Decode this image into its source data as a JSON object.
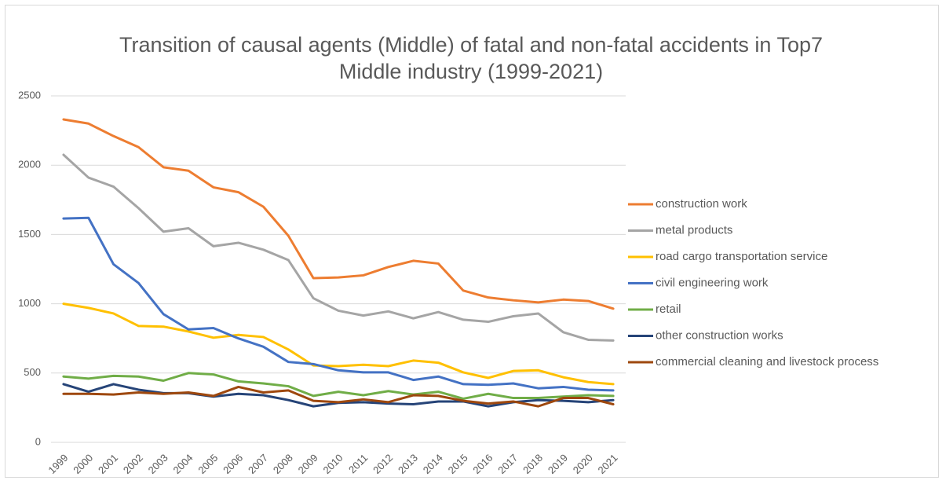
{
  "chart_data": {
    "type": "line",
    "title": "Transition of causal agents (Middle) of fatal and non-fatal accidents in Top7 Middle industry (1999-2021)",
    "categories": [
      "1999",
      "2000",
      "2001",
      "2002",
      "2003",
      "2004",
      "2005",
      "2006",
      "2007",
      "2008",
      "2009",
      "2010",
      "2011",
      "2012",
      "2013",
      "2014",
      "2015",
      "2016",
      "2017",
      "2018",
      "2019",
      "2020",
      "2021"
    ],
    "series": [
      {
        "name": "construction work",
        "color": "#ed7d31",
        "values": [
          2330,
          2300,
          2210,
          2130,
          1985,
          1960,
          1840,
          1805,
          1700,
          1490,
          1185,
          1190,
          1205,
          1265,
          1310,
          1290,
          1095,
          1045,
          1025,
          1010,
          1030,
          1020,
          965
        ]
      },
      {
        "name": "metal products",
        "color": "#a5a5a5",
        "values": [
          2075,
          1910,
          1845,
          1690,
          1520,
          1545,
          1415,
          1440,
          1390,
          1315,
          1040,
          950,
          915,
          945,
          895,
          940,
          885,
          870,
          910,
          930,
          795,
          740,
          735
        ]
      },
      {
        "name": "road cargo transportation service",
        "color": "#ffc000",
        "values": [
          1000,
          970,
          930,
          840,
          835,
          800,
          755,
          775,
          760,
          670,
          555,
          550,
          560,
          550,
          590,
          575,
          505,
          465,
          515,
          520,
          470,
          435,
          420
        ]
      },
      {
        "name": "civil engineering work",
        "color": "#4472c4",
        "values": [
          1615,
          1620,
          1285,
          1150,
          925,
          815,
          825,
          750,
          690,
          580,
          565,
          520,
          505,
          505,
          450,
          475,
          420,
          415,
          425,
          390,
          400,
          380,
          375
        ]
      },
      {
        "name": "retail",
        "color": "#70ad47",
        "values": [
          475,
          460,
          480,
          475,
          445,
          500,
          490,
          440,
          425,
          405,
          335,
          365,
          340,
          370,
          345,
          365,
          315,
          350,
          320,
          320,
          330,
          340,
          335
        ]
      },
      {
        "name": "other construction works",
        "color": "#264478",
        "values": [
          420,
          365,
          420,
          380,
          355,
          355,
          330,
          350,
          340,
          305,
          260,
          285,
          290,
          280,
          275,
          295,
          295,
          260,
          290,
          305,
          300,
          290,
          305
        ]
      },
      {
        "name": "commercial cleaning and livestock process",
        "color": "#9e480e",
        "values": [
          350,
          350,
          345,
          360,
          350,
          360,
          335,
          400,
          360,
          375,
          300,
          290,
          310,
          290,
          340,
          335,
          300,
          280,
          295,
          260,
          320,
          320,
          275
        ]
      }
    ],
    "ylim": [
      0,
      2500
    ],
    "yticks": [
      0,
      500,
      1000,
      1500,
      2000,
      2500
    ],
    "grid": true,
    "legend": "right"
  }
}
